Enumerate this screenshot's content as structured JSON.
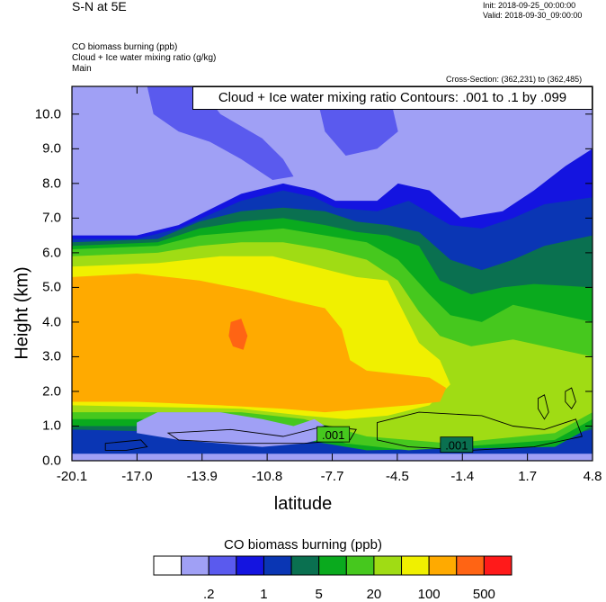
{
  "header": {
    "title": "S-N at 5E",
    "init": "Init: 2018-09-25_00:00:00",
    "valid": "Valid: 2018-09-30_09:00:00",
    "fields": [
      "CO biomass burning   (ppb)",
      "Cloud + Ice water mixing ratio   (g/kg)",
      "Main"
    ],
    "cross_section": "Cross-Section: (362,231) to (362,485)"
  },
  "colorbar": {
    "title": "CO biomass burning  (ppb)",
    "colors": [
      "#ffffff",
      "#a0a0f5",
      "#5a5aee",
      "#1414e0",
      "#0a36b4",
      "#0a7050",
      "#0aaa1e",
      "#46c81e",
      "#a0dc14",
      "#f0f000",
      "#ffaa00",
      "#ff6414",
      "#ff1a1a"
    ],
    "labels": [
      {
        "text": ".2",
        "boundary": 2
      },
      {
        "text": "1",
        "boundary": 4
      },
      {
        "text": "5",
        "boundary": 6
      },
      {
        "text": "20",
        "boundary": 8
      },
      {
        "text": "100",
        "boundary": 10
      },
      {
        "text": "500",
        "boundary": 12
      }
    ]
  },
  "chart_data": {
    "type": "heatmap",
    "title": "S-N at 5E",
    "overlay_label": "Cloud + Ice water mixing ratio Contours: .001 to .1 by .099",
    "contour_labels": [
      ".001",
      ".001"
    ],
    "xlabel": "latitude",
    "ylabel": "Height (km)",
    "xlim": [
      -20.1,
      4.8
    ],
    "ylim": [
      0,
      10.8
    ],
    "x_ticks": [
      "-20.1",
      "-17.0",
      "-13.9",
      "-10.8",
      "-7.7",
      "-4.5",
      "-1.4",
      "1.7",
      "4.8"
    ],
    "y_ticks": [
      "0.0",
      "1.0",
      "2.0",
      "3.0",
      "4.0",
      "5.0",
      "6.0",
      "7.0",
      "8.0",
      "9.0",
      "10.0"
    ],
    "colorbar_levels": [
      0.1,
      0.2,
      0.5,
      1,
      2,
      5,
      10,
      20,
      50,
      100,
      200,
      500
    ],
    "regions": [
      {
        "level": 1,
        "points": [
          [
            -20.1,
            10.8
          ],
          [
            4.8,
            10.8
          ],
          [
            4.8,
            0
          ],
          [
            -20.1,
            0
          ]
        ]
      },
      {
        "level": 2,
        "points": [
          [
            -16.5,
            10.8
          ],
          [
            -14.0,
            10.8
          ],
          [
            -13.0,
            10.0
          ],
          [
            -11.0,
            9.3
          ],
          [
            -10.0,
            8.7
          ],
          [
            -9.5,
            8.2
          ],
          [
            -10.5,
            8.1
          ],
          [
            -12.0,
            8.7
          ],
          [
            -13.5,
            9.2
          ],
          [
            -15.0,
            9.5
          ],
          [
            -16.2,
            10.0
          ]
        ]
      },
      {
        "level": 2,
        "points": [
          [
            -8.5,
            10.8
          ],
          [
            -5.0,
            10.8
          ],
          [
            -4.5,
            9.5
          ],
          [
            -5.5,
            9.0
          ],
          [
            -7.0,
            8.8
          ],
          [
            -8.0,
            9.5
          ]
        ]
      },
      {
        "level": 3,
        "points": [
          [
            -20.1,
            6.5
          ],
          [
            -17.0,
            6.5
          ],
          [
            -15.0,
            6.8
          ],
          [
            -12.0,
            7.7
          ],
          [
            -10.0,
            8.0
          ],
          [
            -8.5,
            7.8
          ],
          [
            -7.5,
            7.5
          ],
          [
            -5.5,
            7.5
          ],
          [
            -4.5,
            8.0
          ],
          [
            -3.0,
            7.8
          ],
          [
            -1.5,
            7.0
          ],
          [
            0.5,
            7.2
          ],
          [
            2.0,
            7.8
          ],
          [
            3.5,
            8.5
          ],
          [
            4.8,
            9.0
          ],
          [
            4.8,
            1.5
          ],
          [
            -20.1,
            0.4
          ]
        ]
      },
      {
        "level": 4,
        "points": [
          [
            -20.1,
            6.4
          ],
          [
            -17.0,
            6.4
          ],
          [
            -15.0,
            6.7
          ],
          [
            -12.0,
            7.5
          ],
          [
            -10.0,
            7.8
          ],
          [
            -8.5,
            7.6
          ],
          [
            -7.5,
            7.3
          ],
          [
            -5.5,
            7.2
          ],
          [
            -4.0,
            7.5
          ],
          [
            -2.0,
            6.8
          ],
          [
            -0.5,
            6.7
          ],
          [
            1.0,
            7.0
          ],
          [
            2.5,
            7.4
          ],
          [
            4.8,
            7.6
          ],
          [
            4.8,
            0.2
          ],
          [
            -20.1,
            0.2
          ]
        ]
      },
      {
        "level": 5,
        "points": [
          [
            -20.1,
            6.3
          ],
          [
            -16.0,
            6.4
          ],
          [
            -14.0,
            6.9
          ],
          [
            -12.0,
            7.2
          ],
          [
            -10.0,
            7.3
          ],
          [
            -8.0,
            7.2
          ],
          [
            -6.5,
            6.9
          ],
          [
            -5.0,
            6.8
          ],
          [
            -3.5,
            6.6
          ],
          [
            -2.0,
            5.8
          ],
          [
            -0.5,
            5.5
          ],
          [
            1.0,
            5.8
          ],
          [
            2.5,
            6.2
          ],
          [
            4.8,
            6.5
          ],
          [
            4.8,
            0.9
          ],
          [
            2.5,
            0.6
          ],
          [
            0.5,
            0.6
          ],
          [
            -20.1,
            0.9
          ]
        ]
      },
      {
        "level": 6,
        "points": [
          [
            -20.1,
            6.2
          ],
          [
            -16.0,
            6.3
          ],
          [
            -14.0,
            6.7
          ],
          [
            -12.0,
            6.9
          ],
          [
            -10.0,
            7.0
          ],
          [
            -8.0,
            6.8
          ],
          [
            -6.5,
            6.6
          ],
          [
            -5.0,
            6.5
          ],
          [
            -3.5,
            6.2
          ],
          [
            -2.5,
            5.2
          ],
          [
            -1.0,
            4.8
          ],
          [
            0.5,
            5.0
          ],
          [
            2.0,
            5.1
          ],
          [
            4.8,
            5.0
          ],
          [
            4.8,
            1.0
          ],
          [
            3.0,
            0.4
          ],
          [
            -6.0,
            0.3
          ],
          [
            -9.0,
            0.6
          ],
          [
            -12.0,
            1.0
          ],
          [
            -20.1,
            1.0
          ]
        ]
      },
      {
        "level": 7,
        "points": [
          [
            -20.1,
            6.1
          ],
          [
            -16.0,
            6.2
          ],
          [
            -14.0,
            6.5
          ],
          [
            -12.0,
            6.6
          ],
          [
            -10.0,
            6.7
          ],
          [
            -8.0,
            6.5
          ],
          [
            -6.0,
            6.3
          ],
          [
            -4.5,
            5.8
          ],
          [
            -3.0,
            4.8
          ],
          [
            -2.0,
            4.2
          ],
          [
            -0.5,
            4.0
          ],
          [
            1.0,
            4.5
          ],
          [
            2.5,
            4.3
          ],
          [
            4.8,
            4.0
          ],
          [
            4.8,
            1.2
          ],
          [
            3.0,
            0.6
          ],
          [
            -4.0,
            0.3
          ],
          [
            -7.0,
            0.5
          ],
          [
            -9.5,
            1.0
          ],
          [
            -12.0,
            1.2
          ],
          [
            -20.1,
            1.2
          ]
        ]
      },
      {
        "level": 8,
        "points": [
          [
            -20.1,
            5.9
          ],
          [
            -16.0,
            6.0
          ],
          [
            -14.0,
            6.2
          ],
          [
            -12.0,
            6.3
          ],
          [
            -10.0,
            6.3
          ],
          [
            -8.0,
            6.1
          ],
          [
            -6.0,
            5.8
          ],
          [
            -4.5,
            5.2
          ],
          [
            -3.5,
            4.3
          ],
          [
            -2.5,
            3.6
          ],
          [
            -1.0,
            3.3
          ],
          [
            1.0,
            3.5
          ],
          [
            2.5,
            3.3
          ],
          [
            4.8,
            3.0
          ],
          [
            4.8,
            1.4
          ],
          [
            3.0,
            0.8
          ],
          [
            -2.0,
            0.5
          ],
          [
            -6.0,
            0.7
          ],
          [
            -9.0,
            1.2
          ],
          [
            -12.0,
            1.4
          ],
          [
            -20.1,
            1.4
          ]
        ]
      },
      {
        "level": 9,
        "points": [
          [
            -20.1,
            5.6
          ],
          [
            -16.0,
            5.7
          ],
          [
            -13.0,
            5.9
          ],
          [
            -10.5,
            5.9
          ],
          [
            -8.5,
            5.6
          ],
          [
            -6.5,
            5.3
          ],
          [
            -5.0,
            5.2
          ],
          [
            -4.0,
            4.0
          ],
          [
            -3.5,
            3.4
          ],
          [
            -2.5,
            2.9
          ],
          [
            -2.0,
            2.2
          ],
          [
            -3.0,
            1.6
          ],
          [
            -5.0,
            1.3
          ],
          [
            -7.0,
            1.2
          ],
          [
            -9.0,
            1.3
          ],
          [
            -12.0,
            1.5
          ],
          [
            -20.1,
            1.6
          ]
        ]
      },
      {
        "level": 10,
        "points": [
          [
            -20.1,
            5.3
          ],
          [
            -17.0,
            5.4
          ],
          [
            -14.0,
            5.2
          ],
          [
            -11.5,
            4.9
          ],
          [
            -9.5,
            4.6
          ],
          [
            -8.0,
            4.4
          ],
          [
            -7.2,
            3.8
          ],
          [
            -6.8,
            2.9
          ],
          [
            -6.0,
            2.6
          ],
          [
            -4.5,
            2.5
          ],
          [
            -3.0,
            2.4
          ],
          [
            -2.2,
            2.1
          ],
          [
            -2.5,
            1.7
          ],
          [
            -4.0,
            1.6
          ],
          [
            -6.0,
            1.5
          ],
          [
            -8.0,
            1.4
          ],
          [
            -10.0,
            1.5
          ],
          [
            -13.0,
            1.6
          ],
          [
            -17.0,
            1.7
          ],
          [
            -20.1,
            1.7
          ]
        ]
      },
      {
        "level": 11,
        "points": [
          [
            -12.5,
            4.0
          ],
          [
            -12.0,
            4.1
          ],
          [
            -11.7,
            3.6
          ],
          [
            -11.9,
            3.2
          ],
          [
            -12.4,
            3.3
          ],
          [
            -12.6,
            3.6
          ]
        ]
      },
      {
        "level": 1,
        "points": [
          [
            -17.0,
            1.1
          ],
          [
            -16.0,
            1.4
          ],
          [
            -13.0,
            1.4
          ],
          [
            -11.0,
            1.2
          ],
          [
            -9.5,
            1.0
          ],
          [
            -8.5,
            1.2
          ],
          [
            -8.0,
            1.0
          ],
          [
            -8.3,
            0.6
          ],
          [
            -9.0,
            0.5
          ],
          [
            -11.0,
            0.4
          ],
          [
            -13.0,
            0.5
          ],
          [
            -15.0,
            0.6
          ],
          [
            -17.0,
            0.8
          ]
        ]
      }
    ],
    "contour_lines": [
      [
        [
          -18.5,
          0.5
        ],
        [
          -16.8,
          0.6
        ],
        [
          -16.5,
          0.4
        ],
        [
          -17.5,
          0.3
        ],
        [
          -18.5,
          0.3
        ]
      ],
      [
        [
          -15.5,
          0.8
        ],
        [
          -12.5,
          0.9
        ],
        [
          -10.0,
          0.7
        ],
        [
          -8.0,
          1.0
        ],
        [
          -6.5,
          0.9
        ],
        [
          -6.8,
          0.6
        ],
        [
          -9.0,
          0.5
        ],
        [
          -12.0,
          0.5
        ],
        [
          -15.0,
          0.6
        ]
      ],
      [
        [
          -5.5,
          1.1
        ],
        [
          -3.5,
          1.4
        ],
        [
          -0.5,
          1.3
        ],
        [
          1.0,
          1.0
        ],
        [
          2.5,
          0.9
        ],
        [
          4.0,
          1.2
        ],
        [
          4.3,
          0.7
        ],
        [
          2.0,
          0.4
        ],
        [
          -1.0,
          0.3
        ],
        [
          -4.0,
          0.4
        ],
        [
          -5.5,
          0.6
        ]
      ],
      [
        [
          3.5,
          2.0
        ],
        [
          3.8,
          2.1
        ],
        [
          4.0,
          1.7
        ],
        [
          3.8,
          1.5
        ],
        [
          3.5,
          1.7
        ]
      ],
      [
        [
          2.2,
          1.8
        ],
        [
          2.5,
          1.9
        ],
        [
          2.7,
          1.4
        ],
        [
          2.5,
          1.2
        ],
        [
          2.2,
          1.5
        ]
      ]
    ]
  }
}
